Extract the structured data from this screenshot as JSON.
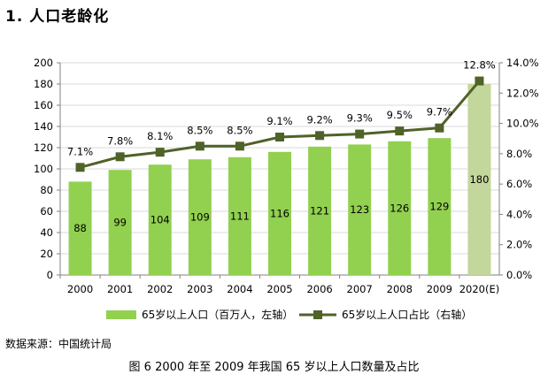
{
  "heading": "1.  人口老龄化",
  "source": "数据来源：中国统计局",
  "caption": "图 6 2000 年至 2009 年我国 65 岁以上人口数量及占比",
  "colors": {
    "bar": "#92d050",
    "bar_estimate": "#c3d69b",
    "line": "#4f6228",
    "marker": "#4f6228",
    "grid": "#d9d9d9",
    "axis": "#808080"
  },
  "chart_data": {
    "type": "bar",
    "categories": [
      "2000",
      "2001",
      "2002",
      "2003",
      "2004",
      "2005",
      "2006",
      "2007",
      "2008",
      "2009",
      "2020(E)"
    ],
    "series": [
      {
        "name": "65岁以上人口（百万人，左轴）",
        "type": "bar",
        "axis": "left",
        "values": [
          88,
          99,
          104,
          109,
          111,
          116,
          121,
          123,
          126,
          129,
          180
        ],
        "data_labels": [
          "88",
          "99",
          "104",
          "109",
          "111",
          "116",
          "121",
          "123",
          "126",
          "129",
          "180"
        ]
      },
      {
        "name": "65岁以上人口占比（右轴）",
        "type": "line",
        "axis": "right",
        "values": [
          7.1,
          7.8,
          8.1,
          8.5,
          8.5,
          9.1,
          9.2,
          9.3,
          9.5,
          9.7,
          12.8
        ],
        "data_labels": [
          "7.1%",
          "7.8%",
          "8.1%",
          "8.5%",
          "8.5%",
          "9.1%",
          "9.2%",
          "9.3%",
          "9.5%",
          "9.7%",
          "12.8%"
        ]
      }
    ],
    "y_left": {
      "lim": [
        0,
        200
      ],
      "ticks": [
        "0",
        "20",
        "40",
        "60",
        "80",
        "100",
        "120",
        "140",
        "160",
        "180",
        "200"
      ]
    },
    "y_right": {
      "lim": [
        0,
        14
      ],
      "ticks": [
        "0.0%",
        "2.0%",
        "4.0%",
        "6.0%",
        "8.0%",
        "10.0%",
        "12.0%",
        "14.0%"
      ]
    },
    "estimate_index": 10,
    "grid": true,
    "legend_position": "bottom"
  }
}
